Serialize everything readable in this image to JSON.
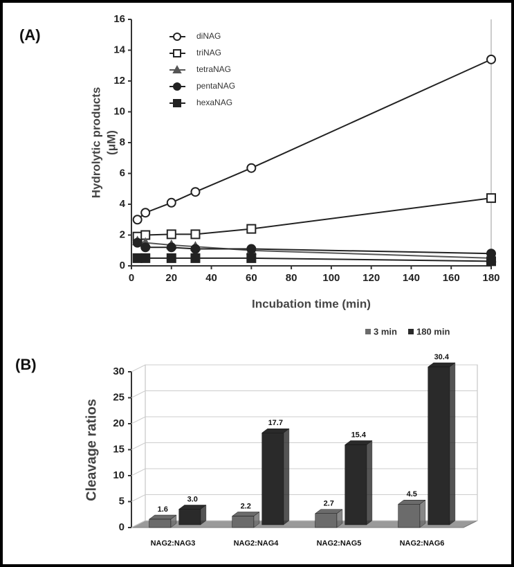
{
  "chart_data": [
    {
      "type": "line",
      "panel_label": "(A)",
      "xlabel": "Incubation time (min)",
      "ylabel": [
        "Hydrolytic products",
        "(μM)"
      ],
      "x": [
        3,
        7,
        20,
        32,
        60,
        180
      ],
      "series": [
        {
          "name": "diNAG",
          "marker": "open-circle",
          "color": "#222222",
          "values": [
            3.0,
            3.45,
            4.1,
            4.8,
            6.35,
            13.4
          ]
        },
        {
          "name": "triNAG",
          "marker": "open-square",
          "color": "#222222",
          "values": [
            1.9,
            2.0,
            2.05,
            2.05,
            2.4,
            4.4
          ]
        },
        {
          "name": "tetraNAG",
          "marker": "filled-triangle",
          "color": "#555555",
          "values": [
            1.6,
            1.5,
            1.35,
            1.25,
            1.0,
            0.5
          ]
        },
        {
          "name": "pentaNAG",
          "marker": "filled-circle",
          "color": "#222222",
          "values": [
            1.5,
            1.2,
            1.2,
            1.1,
            1.1,
            0.8
          ]
        },
        {
          "name": "hexaNAG",
          "marker": "filled-square",
          "color": "#222222",
          "values": [
            0.5,
            0.5,
            0.5,
            0.5,
            0.5,
            0.3
          ]
        }
      ],
      "xlim": [
        0,
        180
      ],
      "xticks": [
        0,
        20,
        40,
        60,
        80,
        100,
        120,
        140,
        160,
        180
      ],
      "ylim": [
        0,
        16
      ],
      "yticks": [
        0,
        2,
        4,
        6,
        8,
        10,
        12,
        14,
        16
      ]
    },
    {
      "type": "bar",
      "panel_label": "(B)",
      "ylabel": "Cleavage ratios",
      "categories": [
        "NAG2:NAG3",
        "NAG2:NAG4",
        "NAG2:NAG5",
        "NAG2:NAG6"
      ],
      "series": [
        {
          "name": "3 min",
          "color": "#6b6b6b",
          "values": [
            1.6,
            2.2,
            2.7,
            4.5
          ]
        },
        {
          "name": "180 min",
          "color": "#2a2a2a",
          "values": [
            3.0,
            17.7,
            15.4,
            30.4
          ],
          "value_labels": [
            "3.0",
            "17.7",
            "15.4",
            "30.4"
          ]
        }
      ],
      "ylim": [
        0,
        30
      ],
      "yticks": [
        0,
        5,
        10,
        15,
        20,
        25,
        30
      ],
      "grid": true
    }
  ]
}
